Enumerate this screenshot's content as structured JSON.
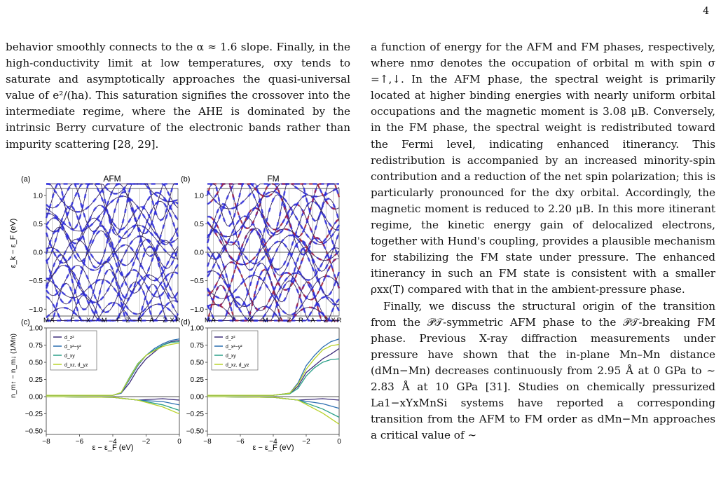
{
  "page_number": "4",
  "left_column": {
    "paragraph": "behavior smoothly connects to the α ≈ 1.6 slope. Finally, in the high-conductivity limit at low temperatures, σxy tends to saturate and asymptotically approaches the quasi-universal value of e²/(ha). This saturation signifies the crossover into the intermediate regime, where the AHE is dominated by the intrinsic Berry curvature of the electronic bands rather than impurity scattering [28, 29]."
  },
  "right_column": {
    "paragraph_1": "a function of energy for the AFM and FM phases, respectively, where nmσ denotes the occupation of orbital m with spin σ =↑,↓. In the AFM phase, the spectral weight is primarily located at higher binding energies with nearly uniform orbital occupations and the magnetic moment is 3.08 μB. Conversely, in the FM phase, the spectral weight is redistributed toward the Fermi level, indicating enhanced itinerancy. This redistribution is accompanied by an increased minority-spin contribution and a reduction of the net spin polarization; this is particularly pronounced for the dxy orbital. Accordingly, the magnetic moment is reduced to 2.20 μB. In this more itinerant regime, the kinetic energy gain of delocalized electrons, together with Hund's coupling, provides a plausible mechanism for stabilizing the FM state under pressure. The enhanced itinerancy in such an FM state is consistent with a smaller ρxx(T) compared with that in the ambient-pressure phase.",
    "paragraph_2": "Finally, we discuss the structural origin of the transition from the 𝒫𝒯-symmetric AFM phase to the 𝒫𝒯-breaking FM phase. Previous X-ray diffraction measurements under pressure have shown that the in-plane Mn–Mn distance (dMn−Mn) decreases continuously from 2.95 Å at 0 GPa to ∼ 2.83 Å at 10 GPa [31]. Studies on chemically pressurized La1−xYxMnSi systems have reported a corresponding transition from the AFM to FM order as dMn−Mn approaches a critical value of ∼"
  },
  "figure": {
    "panel_a": {
      "label": "(a)",
      "title": "AFM"
    },
    "panel_b": {
      "label": "(b)",
      "title": "FM"
    },
    "panel_c": {
      "label": "(c)"
    },
    "panel_d": {
      "label": "(d)"
    },
    "band_ylabel": "ε_k − ε_F (eV)",
    "occ_ylabel": "n_m↑ − n_m↓ (1/Mn)",
    "xlabel": "ε − ε_F (eV)",
    "band_yticks": [
      "1.0",
      "0.5",
      "0.0",
      "−0.5",
      "−1.0"
    ],
    "kpath_labels": [
      "M",
      "A",
      "Γ",
      "X",
      "M",
      "Γ",
      "Z",
      "R",
      "A",
      "Z",
      "X",
      "R"
    ],
    "occ_yticks": [
      "1.00",
      "0.75",
      "0.50",
      "0.25",
      "0.00",
      "−0.25",
      "−0.50"
    ],
    "occ_xticks": [
      "−8",
      "−6",
      "−4",
      "−2",
      "0"
    ],
    "legend": [
      "d_z²",
      "d_x²−y²",
      "d_xy",
      "d_xz, d_yz"
    ],
    "colors": {
      "up": "#2a2ae8",
      "down": "#b0203a",
      "band": "#3a2a60",
      "dz2": "#3d2d7a",
      "dx2y2": "#2b6fb0",
      "dxy": "#2aa088",
      "dxz": "#b8d22a"
    }
  },
  "chart_data": [
    {
      "type": "line",
      "panel": "(c)",
      "ylim": [
        -0.55,
        1.0
      ],
      "xlim": [
        -8,
        0
      ],
      "series": [
        {
          "name": "d_z²",
          "x": [
            -8,
            -4,
            -3.5,
            -3,
            -2.5,
            -2,
            -1.5,
            -1,
            -0.5,
            0
          ],
          "values": [
            0.02,
            0.02,
            0.05,
            0.2,
            0.4,
            0.55,
            0.65,
            0.75,
            0.8,
            0.82
          ]
        },
        {
          "name": "d_x²−y²",
          "x": [
            -8,
            -4,
            -3.5,
            -3,
            -2.5,
            -2,
            -1.5,
            -1,
            -0.5,
            0
          ],
          "values": [
            0.02,
            0.02,
            0.05,
            0.25,
            0.45,
            0.6,
            0.7,
            0.77,
            0.82,
            0.84
          ]
        },
        {
          "name": "d_xy",
          "x": [
            -8,
            -4,
            -3.5,
            -3,
            -2.5,
            -2,
            -1.5,
            -1,
            -0.5,
            0
          ],
          "values": [
            0.02,
            0.02,
            0.06,
            0.28,
            0.48,
            0.6,
            0.68,
            0.75,
            0.79,
            0.8
          ]
        },
        {
          "name": "d_xz, d_yz",
          "x": [
            -8,
            -4,
            -3.5,
            -3,
            -2.5,
            -2,
            -1.5,
            -1,
            -0.5,
            0
          ],
          "values": [
            0.02,
            0.02,
            0.06,
            0.27,
            0.47,
            0.6,
            0.67,
            0.73,
            0.76,
            0.78
          ]
        }
      ]
    },
    {
      "type": "line",
      "panel": "(d)",
      "ylim": [
        -0.55,
        1.0
      ],
      "xlim": [
        -8,
        0
      ],
      "series": [
        {
          "name": "d_z²",
          "x": [
            -8,
            -4,
            -3,
            -2.5,
            -2,
            -1.5,
            -1,
            -0.5,
            0
          ],
          "values": [
            0.02,
            0.02,
            0.05,
            0.15,
            0.35,
            0.45,
            0.55,
            0.62,
            0.7
          ]
        },
        {
          "name": "d_x²−y²",
          "x": [
            -8,
            -4,
            -3,
            -2.5,
            -2,
            -1.5,
            -1,
            -0.5,
            0
          ],
          "values": [
            0.02,
            0.02,
            0.05,
            0.2,
            0.45,
            0.6,
            0.72,
            0.8,
            0.84
          ]
        },
        {
          "name": "d_xy",
          "x": [
            -8,
            -4,
            -3,
            -2.5,
            -2,
            -1.5,
            -1,
            -0.5,
            0
          ],
          "values": [
            0.02,
            0.02,
            0.04,
            0.12,
            0.3,
            0.42,
            0.5,
            0.54,
            0.55
          ]
        },
        {
          "name": "d_xz, d_yz",
          "x": [
            -8,
            -4,
            -3,
            -2.5,
            -2,
            -1.5,
            -1,
            -0.5,
            0
          ],
          "values": [
            0.02,
            0.02,
            0.05,
            0.18,
            0.4,
            0.55,
            0.68,
            0.74,
            0.76
          ]
        }
      ]
    }
  ]
}
